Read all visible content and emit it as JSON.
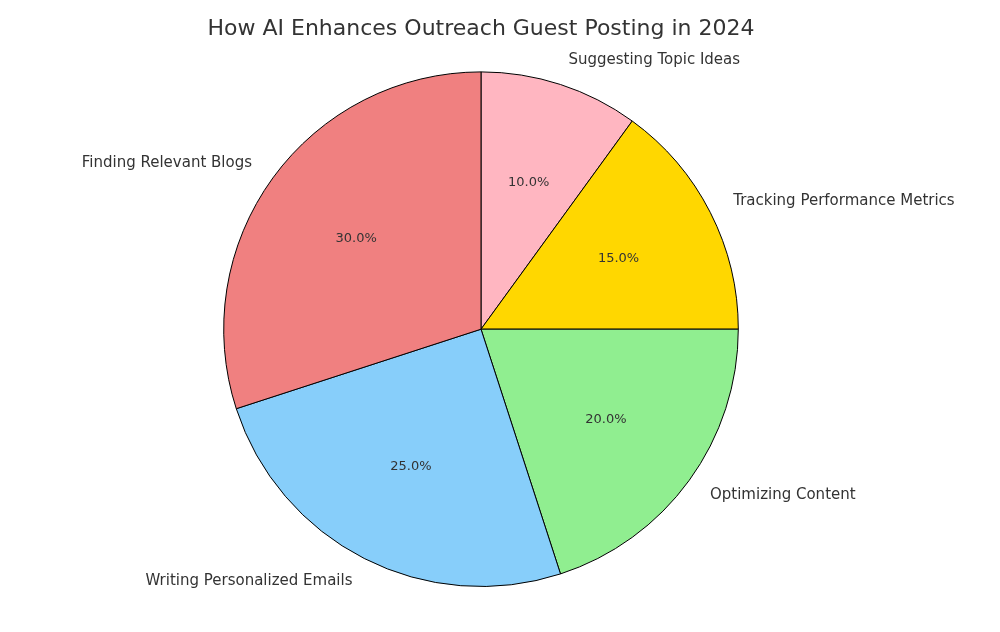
{
  "chart_data": {
    "type": "pie",
    "title": "How AI Enhances Outreach Guest Posting in 2024",
    "categories": [
      "Suggesting Topic Ideas",
      "Tracking Performance Metrics",
      "Optimizing Content",
      "Writing Personalized Emails",
      "Finding Relevant Blogs"
    ],
    "values": [
      10,
      15,
      20,
      25,
      30
    ],
    "value_labels": [
      "10.0%",
      "15.0%",
      "20.0%",
      "25.0%",
      "30.0%"
    ],
    "colors": [
      "#ffb6c1",
      "#ffd700",
      "#90ee90",
      "#87cefa",
      "#f08080"
    ],
    "data_labels": true
  }
}
